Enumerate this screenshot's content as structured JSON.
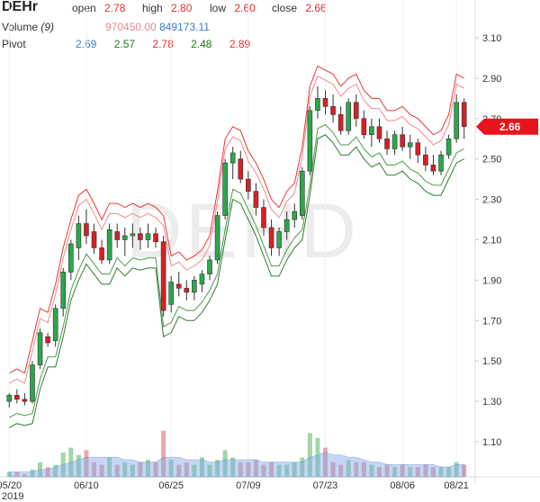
{
  "header": {
    "symbol": "DEHr",
    "open_label": "open",
    "open_value": "2.78",
    "high_label": "high",
    "high_value": "2.80",
    "low_label": "low",
    "low_value": "2.60",
    "close_label": "close",
    "close_value": "2.66",
    "volume_label": "Volume",
    "volume_period": "(9)",
    "volume_value": "970450.00",
    "volume_avg": "849173.11",
    "pivot_label": "Pivot",
    "pivot_values": [
      "2.69",
      "2.57",
      "2.78",
      "2.48",
      "2.89"
    ]
  },
  "watermark": "DEHD",
  "last_price_tag": "2.66",
  "colors": {
    "up": "#2aa84a",
    "down": "#d81f26",
    "pivot_upper": "#e53935",
    "pivot_lower": "#2e7d32",
    "volume_avg": "#7fa8e8",
    "tag": "#e8141c"
  },
  "chart_data": {
    "type": "candlestick",
    "y_ticks": [
      "3.10",
      "2.90",
      "2.70",
      "2.50",
      "2.30",
      "2.10",
      "1.90",
      "1.70",
      "1.50",
      "1.30",
      "1.10"
    ],
    "ylim": [
      1.0,
      3.2
    ],
    "x_ticks": [
      "05/20",
      "06/10",
      "06/25",
      "07/09",
      "07/23",
      "08/06",
      "08/21"
    ],
    "x_year": "2019",
    "candles": [
      [
        1.3,
        1.34,
        1.27,
        1.33
      ],
      [
        1.33,
        1.36,
        1.29,
        1.31
      ],
      [
        1.31,
        1.34,
        1.28,
        1.3
      ],
      [
        1.3,
        1.5,
        1.29,
        1.48
      ],
      [
        1.48,
        1.66,
        1.46,
        1.64
      ],
      [
        1.62,
        1.64,
        1.57,
        1.59
      ],
      [
        1.6,
        1.78,
        1.57,
        1.76
      ],
      [
        1.76,
        1.96,
        1.72,
        1.94
      ],
      [
        1.94,
        2.1,
        1.9,
        2.08
      ],
      [
        2.06,
        2.22,
        2.0,
        2.18
      ],
      [
        2.18,
        2.25,
        2.08,
        2.12
      ],
      [
        2.14,
        2.18,
        2.03,
        2.06
      ],
      [
        2.06,
        2.1,
        1.98,
        2.0
      ],
      [
        2.0,
        2.18,
        1.98,
        2.15
      ],
      [
        2.14,
        2.18,
        2.06,
        2.1
      ],
      [
        2.1,
        2.16,
        2.02,
        2.12
      ],
      [
        2.12,
        2.18,
        2.06,
        2.13
      ],
      [
        2.13,
        2.16,
        2.05,
        2.1
      ],
      [
        2.1,
        2.18,
        2.06,
        2.13
      ],
      [
        2.13,
        2.16,
        2.06,
        2.09
      ],
      [
        2.09,
        2.12,
        1.72,
        1.75
      ],
      [
        1.78,
        1.92,
        1.74,
        1.89
      ],
      [
        1.88,
        1.94,
        1.82,
        1.86
      ],
      [
        1.86,
        1.9,
        1.8,
        1.84
      ],
      [
        1.84,
        1.92,
        1.8,
        1.9
      ],
      [
        1.88,
        1.95,
        1.84,
        1.93
      ],
      [
        1.93,
        2.02,
        1.9,
        2.0
      ],
      [
        2.0,
        2.24,
        1.98,
        2.22
      ],
      [
        2.22,
        2.5,
        2.2,
        2.48
      ],
      [
        2.48,
        2.56,
        2.4,
        2.53
      ],
      [
        2.5,
        2.54,
        2.38,
        2.4
      ],
      [
        2.4,
        2.44,
        2.3,
        2.34
      ],
      [
        2.34,
        2.38,
        2.22,
        2.26
      ],
      [
        2.26,
        2.3,
        2.12,
        2.16
      ],
      [
        2.16,
        2.2,
        2.02,
        2.06
      ],
      [
        2.06,
        2.16,
        2.02,
        2.14
      ],
      [
        2.14,
        2.24,
        2.1,
        2.2
      ],
      [
        2.2,
        2.28,
        2.16,
        2.24
      ],
      [
        2.22,
        2.46,
        2.2,
        2.44
      ],
      [
        2.44,
        2.76,
        2.42,
        2.74
      ],
      [
        2.74,
        2.86,
        2.7,
        2.8
      ],
      [
        2.8,
        2.84,
        2.72,
        2.76
      ],
      [
        2.76,
        2.82,
        2.68,
        2.72
      ],
      [
        2.72,
        2.76,
        2.62,
        2.64
      ],
      [
        2.64,
        2.8,
        2.62,
        2.78
      ],
      [
        2.78,
        2.82,
        2.66,
        2.7
      ],
      [
        2.7,
        2.74,
        2.6,
        2.62
      ],
      [
        2.62,
        2.7,
        2.56,
        2.66
      ],
      [
        2.66,
        2.7,
        2.58,
        2.6
      ],
      [
        2.6,
        2.64,
        2.52,
        2.55
      ],
      [
        2.55,
        2.64,
        2.52,
        2.62
      ],
      [
        2.62,
        2.66,
        2.54,
        2.56
      ],
      [
        2.56,
        2.62,
        2.5,
        2.58
      ],
      [
        2.58,
        2.6,
        2.48,
        2.52
      ],
      [
        2.52,
        2.56,
        2.44,
        2.47
      ],
      [
        2.47,
        2.52,
        2.42,
        2.44
      ],
      [
        2.44,
        2.54,
        2.42,
        2.52
      ],
      [
        2.52,
        2.62,
        2.5,
        2.6
      ],
      [
        2.6,
        2.82,
        2.58,
        2.78
      ],
      [
        2.78,
        2.8,
        2.6,
        2.66
      ]
    ],
    "volume": [
      0.2,
      0.2,
      0.1,
      0.3,
      0.6,
      0.4,
      0.5,
      1.0,
      1.2,
      0.9,
      1.1,
      0.6,
      0.5,
      0.8,
      0.5,
      0.6,
      0.5,
      0.6,
      0.7,
      0.6,
      1.9,
      0.7,
      0.5,
      0.6,
      0.5,
      0.8,
      0.5,
      0.7,
      1.1,
      0.8,
      0.6,
      0.6,
      0.7,
      0.5,
      0.6,
      0.5,
      0.5,
      0.6,
      0.8,
      1.8,
      1.6,
      1.2,
      0.6,
      0.5,
      0.7,
      0.6,
      0.6,
      0.5,
      0.4,
      0.5,
      0.4,
      0.5,
      0.4,
      0.4,
      0.5,
      0.4,
      0.4,
      0.4,
      0.6,
      0.5
    ],
    "volume_ma": [
      0.2,
      0.2,
      0.2,
      0.2,
      0.3,
      0.3,
      0.4,
      0.5,
      0.6,
      0.7,
      0.8,
      0.8,
      0.8,
      0.8,
      0.8,
      0.7,
      0.7,
      0.6,
      0.6,
      0.6,
      0.8,
      0.8,
      0.8,
      0.7,
      0.7,
      0.7,
      0.6,
      0.6,
      0.7,
      0.7,
      0.7,
      0.7,
      0.7,
      0.6,
      0.6,
      0.6,
      0.6,
      0.6,
      0.6,
      0.8,
      0.9,
      1.0,
      0.9,
      0.9,
      0.8,
      0.8,
      0.7,
      0.6,
      0.6,
      0.5,
      0.5,
      0.5,
      0.5,
      0.5,
      0.5,
      0.5,
      0.4,
      0.4,
      0.5,
      0.5
    ]
  }
}
